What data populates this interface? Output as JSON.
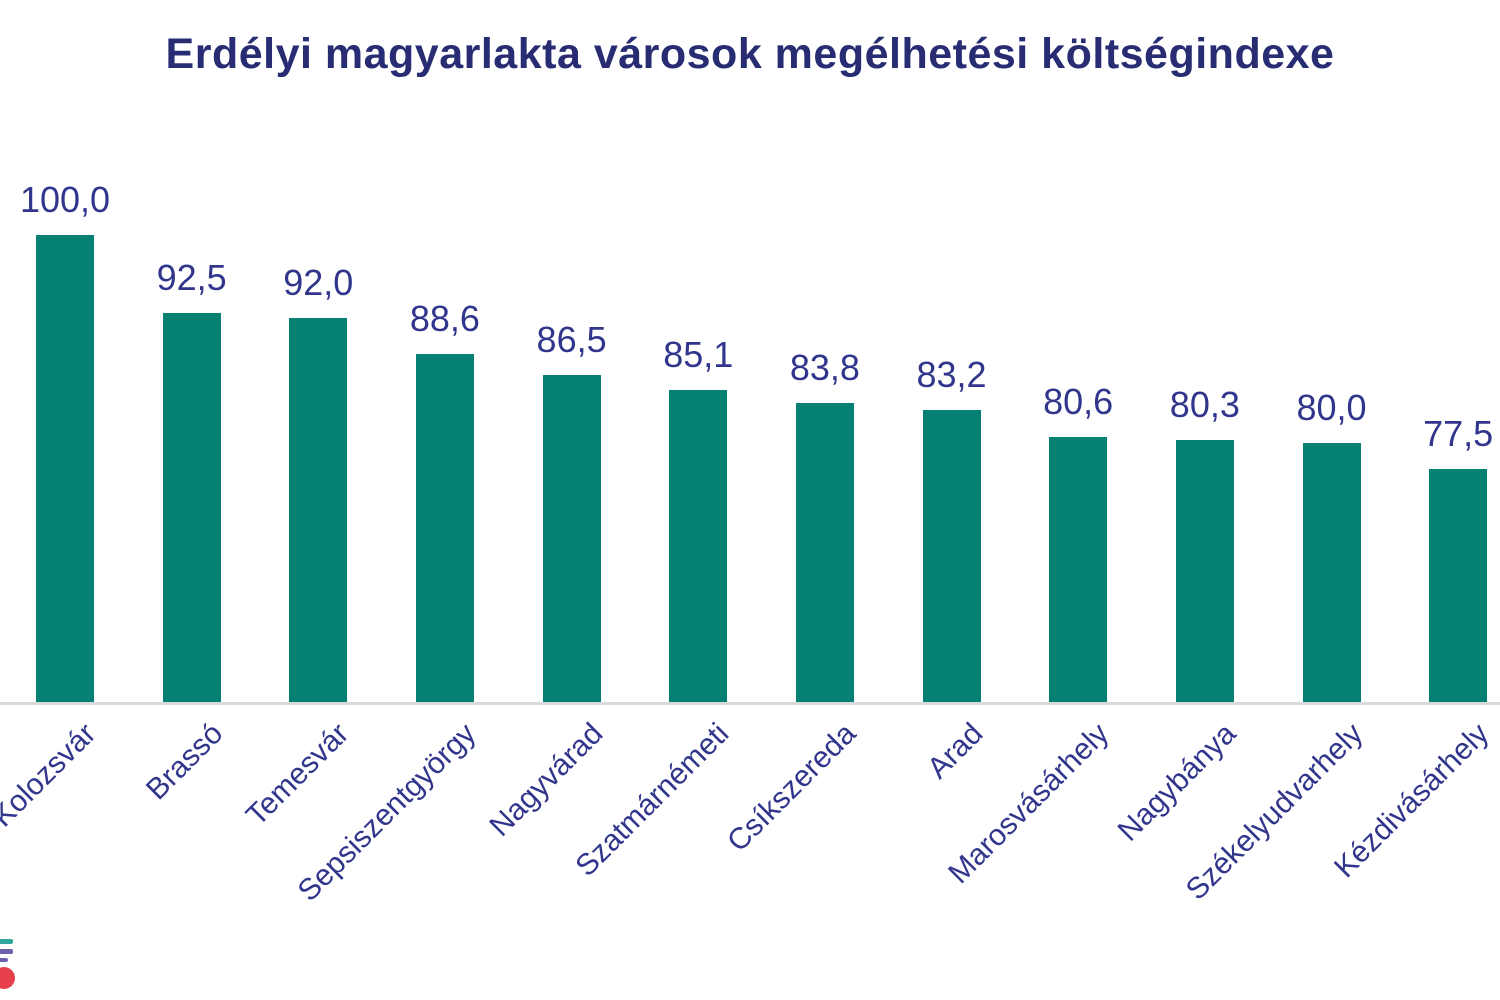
{
  "chart_data": {
    "type": "bar",
    "title": "Erdélyi magyarlakta városok megélhetési költségindexe",
    "categories": [
      "Kolozsvár",
      "Brassó",
      "Temesvár",
      "Sepsiszentgyörgy",
      "Nagyvárad",
      "Szatmárnémeti",
      "Csíkszereda",
      "Arad",
      "Marosvásárhely",
      "Nagybánya",
      "Székelyudvarhely",
      "Kézdivásárhely"
    ],
    "values": [
      100.0,
      92.5,
      92.0,
      88.6,
      86.5,
      85.1,
      83.8,
      83.2,
      80.6,
      80.3,
      80.0,
      77.5
    ],
    "value_labels": [
      "100,0",
      "92,5",
      "92,0",
      "88,6",
      "86,5",
      "85,1",
      "83,8",
      "83,2",
      "80,6",
      "80,3",
      "80,0",
      "77,5"
    ],
    "xlabel": "",
    "ylabel": "",
    "ylim": [
      55,
      100
    ],
    "grid": false,
    "legend": null,
    "x_labels_rotated_degrees": 45,
    "notes": "first category label and bottom-left logo are clipped by the left image edge"
  },
  "colors": {
    "bar": "#048172",
    "title": "#272C73",
    "labels": "#31368C",
    "axis_line": "#D9D9D9",
    "logo_teal": "#2FA79C",
    "logo_purple": "#6C63AC",
    "logo_red": "#E5404B"
  }
}
